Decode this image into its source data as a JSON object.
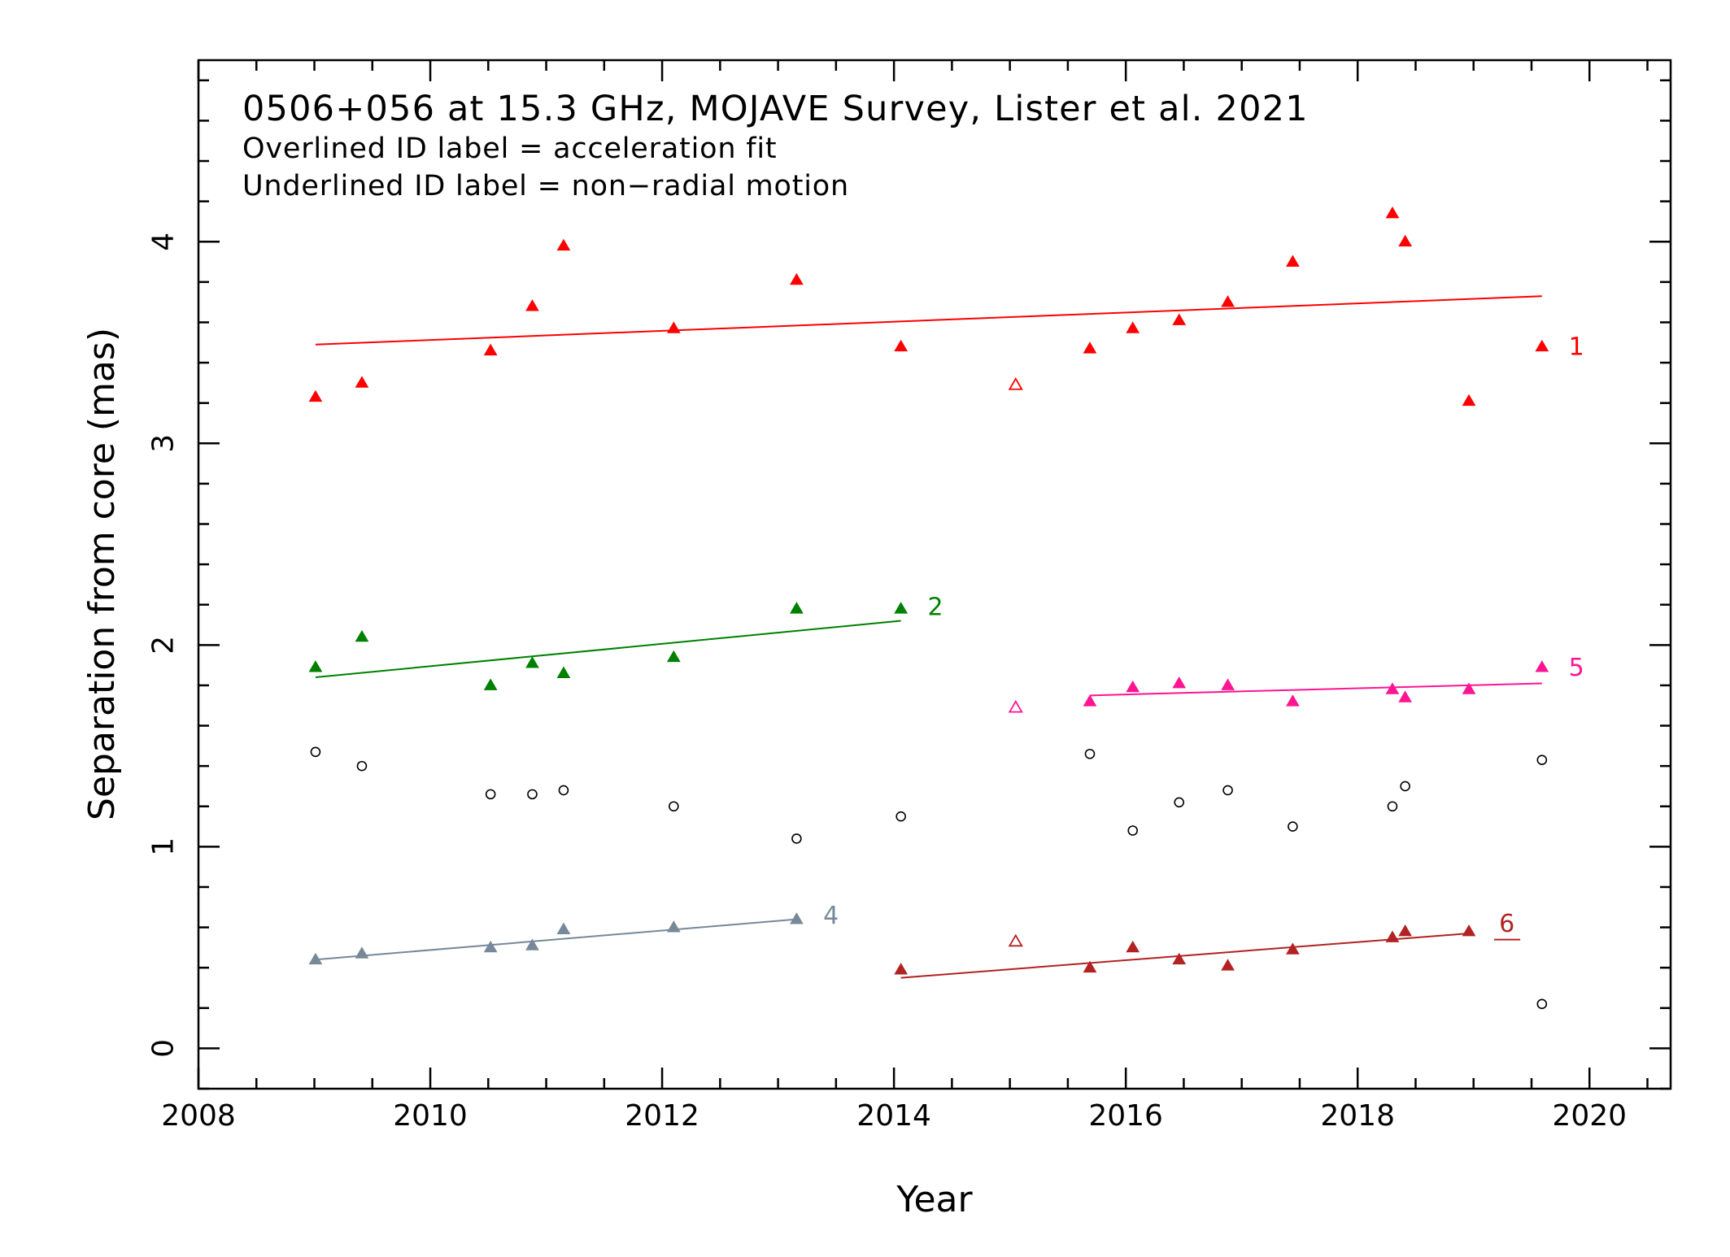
{
  "chart_data": {
    "type": "scatter",
    "title": "0506+056 at 15.3 GHz, MOJAVE Survey, Lister et al. 2021",
    "subtitle_lines": [
      "Overlined ID label = acceleration fit",
      "Underlined ID label = non−radial motion"
    ],
    "xlabel": "Year",
    "ylabel": "Separation from core (mas)",
    "xlim": [
      2008.0,
      2020.7
    ],
    "ylim": [
      -0.2,
      4.9
    ],
    "xticks": [
      2008,
      2010,
      2012,
      2014,
      2016,
      2018,
      2020
    ],
    "xtick_labels": [
      "2008",
      "2010",
      "2012",
      "2014",
      "2016",
      "2018",
      "2020"
    ],
    "yticks": [
      0,
      1,
      2,
      3,
      4
    ],
    "ytick_labels": [
      "0",
      "1",
      "2",
      "3",
      "4"
    ],
    "grid": false,
    "series": [
      {
        "id": "1",
        "color": "#ff0000",
        "marker": "triangle",
        "points": [
          [
            2009.01,
            3.23,
            true
          ],
          [
            2009.41,
            3.3,
            true
          ],
          [
            2010.52,
            3.46,
            true
          ],
          [
            2010.88,
            3.68,
            true
          ],
          [
            2011.15,
            3.98,
            true
          ],
          [
            2012.1,
            3.57,
            true
          ],
          [
            2013.16,
            3.81,
            true
          ],
          [
            2014.06,
            3.48,
            true
          ],
          [
            2015.05,
            3.29,
            false
          ],
          [
            2015.69,
            3.47,
            true
          ],
          [
            2016.06,
            3.57,
            true
          ],
          [
            2016.46,
            3.61,
            true
          ],
          [
            2016.88,
            3.7,
            true
          ],
          [
            2017.44,
            3.9,
            true
          ],
          [
            2018.3,
            4.14,
            true
          ],
          [
            2018.41,
            4.0,
            true
          ],
          [
            2018.96,
            3.21,
            true
          ],
          [
            2019.59,
            3.48,
            true
          ]
        ],
        "fit": [
          [
            2009.01,
            3.49
          ],
          [
            2019.59,
            3.73
          ]
        ],
        "label_at": [
          2019.82,
          3.48
        ]
      },
      {
        "id": "2",
        "color": "#008000",
        "marker": "triangle",
        "points": [
          [
            2009.01,
            1.89,
            true
          ],
          [
            2009.41,
            2.04,
            true
          ],
          [
            2010.52,
            1.8,
            true
          ],
          [
            2010.88,
            1.91,
            true
          ],
          [
            2011.15,
            1.86,
            true
          ],
          [
            2012.1,
            1.94,
            true
          ],
          [
            2013.16,
            2.18,
            true
          ],
          [
            2014.06,
            2.18,
            true
          ]
        ],
        "fit": [
          [
            2009.01,
            1.84
          ],
          [
            2014.06,
            2.12
          ]
        ],
        "label_at": [
          2014.29,
          2.19
        ]
      },
      {
        "id": "4",
        "color": "#778899",
        "marker": "triangle",
        "points": [
          [
            2009.01,
            0.44,
            true
          ],
          [
            2009.41,
            0.47,
            true
          ],
          [
            2010.52,
            0.5,
            true
          ],
          [
            2010.88,
            0.51,
            true
          ],
          [
            2011.15,
            0.59,
            true
          ],
          [
            2012.1,
            0.6,
            true
          ],
          [
            2013.16,
            0.64,
            true
          ]
        ],
        "fit": [
          [
            2009.01,
            0.44
          ],
          [
            2013.16,
            0.64
          ]
        ],
        "label_at": [
          2013.39,
          0.66
        ]
      },
      {
        "id": "5",
        "color": "#ff1493",
        "marker": "triangle",
        "points": [
          [
            2015.05,
            1.69,
            false
          ],
          [
            2015.69,
            1.72,
            true
          ],
          [
            2016.06,
            1.79,
            true
          ],
          [
            2016.46,
            1.81,
            true
          ],
          [
            2016.88,
            1.8,
            true
          ],
          [
            2017.44,
            1.72,
            true
          ],
          [
            2018.3,
            1.78,
            true
          ],
          [
            2018.41,
            1.74,
            true
          ],
          [
            2018.96,
            1.78,
            true
          ],
          [
            2019.59,
            1.89,
            true
          ]
        ],
        "fit": [
          [
            2015.69,
            1.75
          ],
          [
            2019.59,
            1.81
          ]
        ],
        "label_at": [
          2019.82,
          1.89
        ]
      },
      {
        "id": "6",
        "color": "#b22222",
        "marker": "triangle",
        "points": [
          [
            2014.06,
            0.39,
            true
          ],
          [
            2015.05,
            0.53,
            false
          ],
          [
            2015.69,
            0.4,
            true
          ],
          [
            2016.06,
            0.5,
            true
          ],
          [
            2016.46,
            0.44,
            true
          ],
          [
            2016.88,
            0.41,
            true
          ],
          [
            2017.44,
            0.49,
            true
          ],
          [
            2018.3,
            0.55,
            true
          ],
          [
            2018.41,
            0.58,
            true
          ],
          [
            2018.96,
            0.58,
            true
          ]
        ],
        "fit": [
          [
            2014.06,
            0.35
          ],
          [
            2018.96,
            0.57
          ]
        ],
        "label_at": [
          2019.22,
          0.62
        ],
        "underlined": true
      },
      {
        "id": "core",
        "color": "#000000",
        "marker": "circle",
        "points": [
          [
            2009.01,
            1.47
          ],
          [
            2009.41,
            1.4
          ],
          [
            2010.52,
            1.26
          ],
          [
            2010.88,
            1.26
          ],
          [
            2011.15,
            1.28
          ],
          [
            2012.1,
            1.2
          ],
          [
            2013.16,
            1.04
          ],
          [
            2014.06,
            1.15
          ],
          [
            2015.69,
            1.46
          ],
          [
            2016.06,
            1.08
          ],
          [
            2016.46,
            1.22
          ],
          [
            2016.88,
            1.28
          ],
          [
            2017.44,
            1.1
          ],
          [
            2018.3,
            1.2
          ],
          [
            2018.41,
            1.3
          ],
          [
            2019.59,
            1.43
          ],
          [
            2019.59,
            0.22
          ]
        ]
      }
    ]
  }
}
